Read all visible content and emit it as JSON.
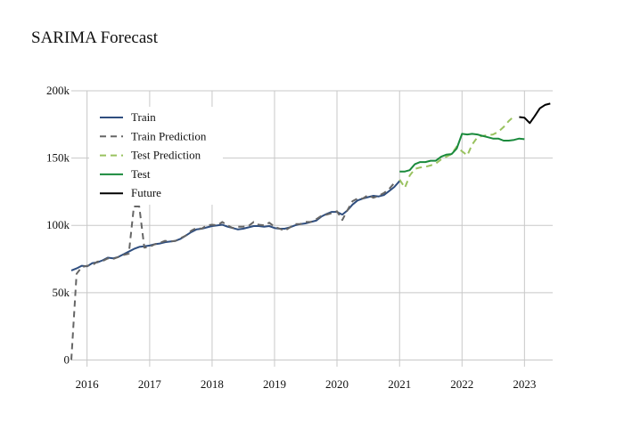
{
  "chart_data": {
    "type": "line",
    "title": "SARIMA Forecast",
    "xlabel": "",
    "ylabel": "",
    "x_axis": {
      "type": "date",
      "range": [
        "2015-10-01",
        "2023-06-15"
      ],
      "ticks": [
        "2016",
        "2017",
        "2018",
        "2019",
        "2020",
        "2021",
        "2022",
        "2023"
      ]
    },
    "y_axis": {
      "range": [
        -5000,
        200000
      ],
      "ticks": [
        0,
        50000,
        100000,
        150000,
        200000
      ],
      "tick_labels": [
        "0",
        "50k",
        "100k",
        "150k",
        "200k"
      ]
    },
    "grid": true,
    "legend": {
      "placement": "top-left",
      "items": [
        "Train",
        "Train Prediction",
        "Test Prediction",
        "Test",
        "Future"
      ]
    },
    "series": [
      {
        "name": "Train",
        "color": "#2f4e7f",
        "dash": "solid",
        "points": [
          [
            "2015-10-01",
            66500
          ],
          [
            "2015-11-01",
            68000
          ],
          [
            "2015-12-01",
            70000
          ],
          [
            "2016-01-01",
            69500
          ],
          [
            "2016-02-01",
            72000
          ],
          [
            "2016-03-01",
            72500
          ],
          [
            "2016-04-01",
            74000
          ],
          [
            "2016-05-01",
            76000
          ],
          [
            "2016-06-01",
            75500
          ],
          [
            "2016-07-01",
            76500
          ],
          [
            "2016-08-01",
            78500
          ],
          [
            "2016-09-01",
            80500
          ],
          [
            "2016-10-01",
            82500
          ],
          [
            "2016-11-01",
            84000
          ],
          [
            "2016-12-01",
            84500
          ],
          [
            "2017-01-01",
            85000
          ],
          [
            "2017-02-01",
            86000
          ],
          [
            "2017-03-01",
            86500
          ],
          [
            "2017-04-01",
            87500
          ],
          [
            "2017-05-01",
            88000
          ],
          [
            "2017-06-01",
            88500
          ],
          [
            "2017-07-01",
            90000
          ],
          [
            "2017-08-01",
            92500
          ],
          [
            "2017-09-01",
            95000
          ],
          [
            "2017-10-01",
            97000
          ],
          [
            "2017-11-01",
            97500
          ],
          [
            "2017-12-01",
            98500
          ],
          [
            "2018-01-01",
            99500
          ],
          [
            "2018-02-01",
            100000
          ],
          [
            "2018-03-01",
            100500
          ],
          [
            "2018-04-01",
            99000
          ],
          [
            "2018-05-01",
            98000
          ],
          [
            "2018-06-01",
            97000
          ],
          [
            "2018-07-01",
            97500
          ],
          [
            "2018-08-01",
            98500
          ],
          [
            "2018-09-01",
            99500
          ],
          [
            "2018-10-01",
            99500
          ],
          [
            "2018-11-01",
            99000
          ],
          [
            "2018-12-01",
            99500
          ],
          [
            "2019-01-01",
            98000
          ],
          [
            "2019-02-01",
            97500
          ],
          [
            "2019-03-01",
            97500
          ],
          [
            "2019-04-01",
            98500
          ],
          [
            "2019-05-01",
            100000
          ],
          [
            "2019-06-01",
            101000
          ],
          [
            "2019-07-01",
            101500
          ],
          [
            "2019-08-01",
            102500
          ],
          [
            "2019-09-01",
            103500
          ],
          [
            "2019-10-01",
            106500
          ],
          [
            "2019-11-01",
            108500
          ],
          [
            "2019-12-01",
            110000
          ],
          [
            "2020-01-01",
            110000
          ],
          [
            "2020-02-01",
            108000
          ],
          [
            "2020-03-01",
            111000
          ],
          [
            "2020-04-01",
            115500
          ],
          [
            "2020-05-01",
            118500
          ],
          [
            "2020-06-01",
            120000
          ],
          [
            "2020-07-01",
            121000
          ],
          [
            "2020-08-01",
            122000
          ],
          [
            "2020-09-01",
            121500
          ],
          [
            "2020-10-01",
            122500
          ],
          [
            "2020-11-01",
            125500
          ],
          [
            "2020-12-01",
            128500
          ],
          [
            "2021-01-01",
            133000
          ]
        ]
      },
      {
        "name": "Train Prediction",
        "color": "#666666",
        "dash": "dashed",
        "points": [
          [
            "2015-10-01",
            0
          ],
          [
            "2015-11-01",
            64000
          ],
          [
            "2015-12-01",
            69000
          ],
          [
            "2016-01-01",
            70000
          ],
          [
            "2016-02-01",
            70500
          ],
          [
            "2016-03-01",
            73000
          ],
          [
            "2016-04-01",
            73500
          ],
          [
            "2016-05-01",
            75500
          ],
          [
            "2016-06-01",
            75000
          ],
          [
            "2016-07-01",
            76500
          ],
          [
            "2016-08-01",
            78000
          ],
          [
            "2016-09-01",
            79000
          ],
          [
            "2016-10-01",
            114000
          ],
          [
            "2016-11-01",
            114000
          ],
          [
            "2016-12-01",
            83500
          ],
          [
            "2017-01-01",
            84000
          ],
          [
            "2017-02-01",
            86000
          ],
          [
            "2017-03-01",
            87000
          ],
          [
            "2017-04-01",
            88500
          ],
          [
            "2017-05-01",
            88000
          ],
          [
            "2017-06-01",
            88500
          ],
          [
            "2017-07-01",
            90500
          ],
          [
            "2017-08-01",
            92500
          ],
          [
            "2017-09-01",
            96000
          ],
          [
            "2017-10-01",
            98000
          ],
          [
            "2017-11-01",
            97500
          ],
          [
            "2017-12-01",
            100000
          ],
          [
            "2018-01-01",
            100500
          ],
          [
            "2018-02-01",
            100000
          ],
          [
            "2018-03-01",
            102500
          ],
          [
            "2018-04-01",
            100000
          ],
          [
            "2018-05-01",
            98000
          ],
          [
            "2018-06-01",
            99000
          ],
          [
            "2018-07-01",
            99000
          ],
          [
            "2018-08-01",
            99500
          ],
          [
            "2018-09-01",
            102500
          ],
          [
            "2018-10-01",
            100500
          ],
          [
            "2018-11-01",
            100000
          ],
          [
            "2018-12-01",
            102000
          ],
          [
            "2019-01-01",
            99000
          ],
          [
            "2019-02-01",
            97500
          ],
          [
            "2019-03-01",
            96000
          ],
          [
            "2019-04-01",
            98500
          ],
          [
            "2019-05-01",
            101000
          ],
          [
            "2019-06-01",
            101000
          ],
          [
            "2019-07-01",
            102500
          ],
          [
            "2019-08-01",
            102500
          ],
          [
            "2019-09-01",
            104500
          ],
          [
            "2019-10-01",
            107000
          ],
          [
            "2019-11-01",
            108000
          ],
          [
            "2019-12-01",
            109000
          ],
          [
            "2020-01-01",
            110500
          ],
          [
            "2020-02-01",
            104000
          ],
          [
            "2020-03-01",
            111000
          ],
          [
            "2020-04-01",
            118000
          ],
          [
            "2020-05-01",
            120000
          ],
          [
            "2020-06-01",
            120000
          ],
          [
            "2020-07-01",
            122500
          ],
          [
            "2020-08-01",
            120500
          ],
          [
            "2020-09-01",
            122000
          ],
          [
            "2020-10-01",
            124000
          ],
          [
            "2020-11-01",
            127000
          ],
          [
            "2020-12-01",
            131500
          ]
        ]
      },
      {
        "name": "Test Prediction",
        "color": "#99c25f",
        "dash": "dashed",
        "points": [
          [
            "2021-01-01",
            134000
          ],
          [
            "2021-02-01",
            128000
          ],
          [
            "2021-03-01",
            137000
          ],
          [
            "2021-04-01",
            142000
          ],
          [
            "2021-05-01",
            143000
          ],
          [
            "2021-06-01",
            143500
          ],
          [
            "2021-07-01",
            144500
          ],
          [
            "2021-08-01",
            146000
          ],
          [
            "2021-09-01",
            149000
          ],
          [
            "2021-10-01",
            151000
          ],
          [
            "2021-11-01",
            153000
          ],
          [
            "2021-12-01",
            158500
          ],
          [
            "2022-01-01",
            155000
          ],
          [
            "2022-02-01",
            152000
          ],
          [
            "2022-03-01",
            160000
          ],
          [
            "2022-04-01",
            165500
          ],
          [
            "2022-05-01",
            166500
          ],
          [
            "2022-06-01",
            167000
          ],
          [
            "2022-07-01",
            167500
          ],
          [
            "2022-08-01",
            169500
          ],
          [
            "2022-09-01",
            173000
          ],
          [
            "2022-10-01",
            177500
          ],
          [
            "2022-11-01",
            181000
          ]
        ]
      },
      {
        "name": "Test",
        "color": "#1a8a3c",
        "dash": "solid",
        "points": [
          [
            "2021-01-01",
            140000
          ],
          [
            "2021-02-01",
            140000
          ],
          [
            "2021-03-01",
            141000
          ],
          [
            "2021-04-01",
            145500
          ],
          [
            "2021-05-01",
            147000
          ],
          [
            "2021-06-01",
            147000
          ],
          [
            "2021-07-01",
            148000
          ],
          [
            "2021-08-01",
            148000
          ],
          [
            "2021-09-01",
            151000
          ],
          [
            "2021-10-01",
            152500
          ],
          [
            "2021-11-01",
            153000
          ],
          [
            "2021-12-01",
            157000
          ],
          [
            "2022-01-01",
            168000
          ],
          [
            "2022-02-01",
            167500
          ],
          [
            "2022-03-01",
            168000
          ],
          [
            "2022-04-01",
            167500
          ],
          [
            "2022-05-01",
            166500
          ],
          [
            "2022-06-01",
            165500
          ],
          [
            "2022-07-01",
            164500
          ],
          [
            "2022-08-01",
            164500
          ],
          [
            "2022-09-01",
            163000
          ],
          [
            "2022-10-01",
            163000
          ],
          [
            "2022-11-01",
            163500
          ],
          [
            "2022-12-01",
            164500
          ],
          [
            "2023-01-01",
            164000
          ]
        ]
      },
      {
        "name": "Future",
        "color": "#000000",
        "dash": "solid",
        "points": [
          [
            "2022-12-01",
            180500
          ],
          [
            "2023-01-01",
            180000
          ],
          [
            "2023-02-01",
            176000
          ],
          [
            "2023-03-01",
            181000
          ],
          [
            "2023-04-01",
            187000
          ],
          [
            "2023-05-01",
            189500
          ],
          [
            "2023-06-01",
            190500
          ]
        ]
      }
    ]
  }
}
